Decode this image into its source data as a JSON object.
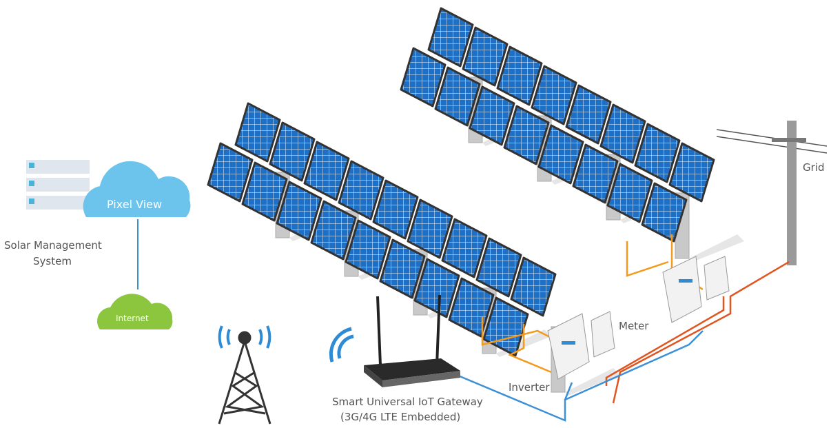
{
  "labels": {
    "cloud": "Pixel View",
    "management": [
      "Solar Management",
      "System"
    ],
    "internet": "Internet",
    "grid": "Grid",
    "meter": "Meter",
    "inverter": "Inverter",
    "gateway": [
      "Smart Universal IoT Gateway",
      "(3G/4G LTE Embedded)"
    ]
  }
}
